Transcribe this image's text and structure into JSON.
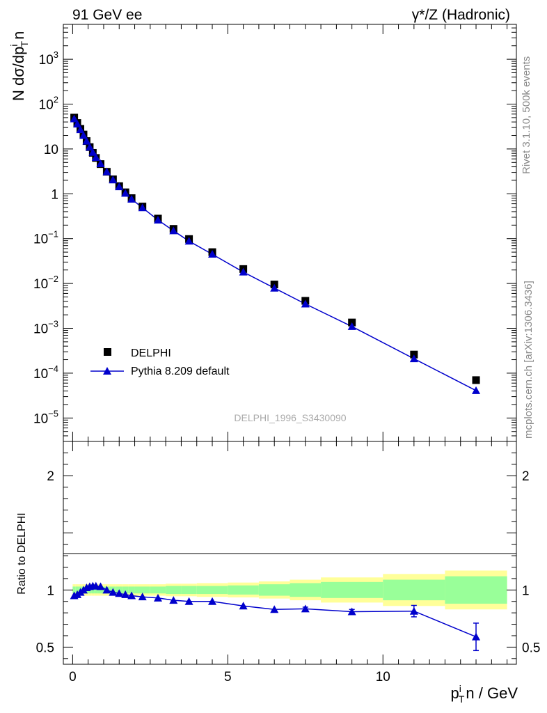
{
  "header": {
    "left": "91 GeV ee",
    "right": "γ*/Z (Hadronic)"
  },
  "side_labels": {
    "rivet": "Rivet 3.1.10,  500k events",
    "mcplots": "mcplots.cern.ch [arXiv:1306.3436]"
  },
  "analysis_id": "DELPHI_1996_S3430090",
  "axes": {
    "main_ylabel": "N dσ/dp",
    "main_ylabel_sup": "i",
    "main_ylabel_sub": "T",
    "main_ylabel_end": "n",
    "ratio_ylabel": "Ratio to DELPHI",
    "xlabel_p": "p",
    "xlabel_sup": "i",
    "xlabel_sub": "T",
    "xlabel_end": "n / GeV"
  },
  "legend": {
    "data_label": "DELPHI",
    "mc_label": "Pythia 8.209 default"
  },
  "colors": {
    "data": "#000000",
    "mc": "#0000cc",
    "band_outer": "#ffff99",
    "band_inner": "#99ff99"
  },
  "chart_data": [
    {
      "type": "scatter",
      "panel": "main",
      "yscale": "log",
      "xlim": [
        -0.3,
        14.3
      ],
      "ylim": [
        3e-06,
        6000
      ],
      "yticks": [
        "10^-5",
        "10^-4",
        "10^-3",
        "10^-2",
        "10^-1",
        "1",
        "10",
        "10^2",
        "10^3"
      ],
      "xticks": [
        "0",
        "5",
        "10"
      ],
      "grid": false,
      "legend_position": "lower-left",
      "series": [
        {
          "name": "DELPHI",
          "marker": "square",
          "x": [
            0.05,
            0.15,
            0.25,
            0.35,
            0.45,
            0.55,
            0.65,
            0.75,
            0.9,
            1.1,
            1.3,
            1.5,
            1.7,
            1.9,
            2.25,
            2.75,
            3.25,
            3.75,
            4.5,
            5.5,
            6.5,
            7.5,
            9,
            11,
            13
          ],
          "y": [
            50,
            38,
            28,
            21,
            15,
            11,
            8.2,
            6.3,
            4.6,
            3.1,
            2.1,
            1.48,
            1.08,
            0.8,
            0.52,
            0.28,
            0.165,
            0.098,
            0.05,
            0.021,
            0.0095,
            0.0041,
            0.00135,
            0.00026,
            7e-05
          ]
        },
        {
          "name": "Pythia 8.209 default",
          "marker": "triangle",
          "x": [
            0.05,
            0.15,
            0.25,
            0.35,
            0.45,
            0.55,
            0.65,
            0.75,
            0.9,
            1.1,
            1.3,
            1.5,
            1.7,
            1.9,
            2.25,
            2.75,
            3.25,
            3.75,
            4.5,
            5.5,
            6.5,
            7.5,
            9,
            11,
            13
          ],
          "y": [
            47,
            36,
            27,
            20,
            15,
            11,
            8.4,
            6.5,
            4.7,
            3.1,
            2.05,
            1.44,
            1.03,
            0.76,
            0.49,
            0.26,
            0.15,
            0.088,
            0.045,
            0.018,
            0.0079,
            0.0035,
            0.0011,
            0.00021,
            4.1e-05
          ]
        }
      ]
    },
    {
      "type": "line",
      "panel": "ratio",
      "ylabel": "Ratio to DELPHI",
      "xlim": [
        -0.3,
        14.3
      ],
      "ylim": [
        0.35,
        2.3
      ],
      "yticks": [
        "0.5",
        "1",
        "2"
      ],
      "xticks": [
        "0",
        "5",
        "10"
      ],
      "grid": false,
      "bands": {
        "bin_edges": [
          0,
          0.1,
          0.2,
          0.3,
          0.4,
          0.5,
          0.6,
          0.7,
          0.8,
          1,
          1.2,
          1.4,
          1.6,
          1.8,
          2,
          2.5,
          3,
          3.5,
          4,
          5,
          6,
          7,
          8,
          10,
          12,
          14
        ],
        "inner_half_width": [
          0.03,
          0.03,
          0.03,
          0.03,
          0.03,
          0.03,
          0.03,
          0.03,
          0.03,
          0.03,
          0.03,
          0.03,
          0.03,
          0.03,
          0.03,
          0.03,
          0.035,
          0.035,
          0.035,
          0.04,
          0.05,
          0.06,
          0.07,
          0.09,
          0.12,
          0.17
        ],
        "outer_half_width": [
          0.05,
          0.05,
          0.05,
          0.05,
          0.05,
          0.05,
          0.05,
          0.05,
          0.05,
          0.05,
          0.05,
          0.05,
          0.05,
          0.05,
          0.05,
          0.05,
          0.055,
          0.055,
          0.06,
          0.065,
          0.075,
          0.09,
          0.11,
          0.14,
          0.17,
          0.38
        ]
      },
      "series": [
        {
          "name": "Pythia 8.209 default",
          "x": [
            0.05,
            0.15,
            0.25,
            0.35,
            0.45,
            0.55,
            0.65,
            0.75,
            0.9,
            1.1,
            1.3,
            1.5,
            1.7,
            1.9,
            2.25,
            2.75,
            3.25,
            3.75,
            4.5,
            5.5,
            6.5,
            7.5,
            9,
            11,
            13
          ],
          "y": [
            0.95,
            0.96,
            0.98,
            1.0,
            1.02,
            1.03,
            1.035,
            1.035,
            1.03,
            1.0,
            0.98,
            0.97,
            0.96,
            0.95,
            0.94,
            0.93,
            0.91,
            0.9,
            0.9,
            0.86,
            0.83,
            0.835,
            0.81,
            0.815,
            0.59
          ],
          "yerr": [
            0,
            0,
            0,
            0,
            0,
            0,
            0,
            0,
            0,
            0,
            0,
            0,
            0,
            0,
            0,
            0,
            0,
            0,
            0,
            0,
            0,
            0.015,
            0.02,
            0.05,
            0.12
          ]
        }
      ]
    }
  ]
}
